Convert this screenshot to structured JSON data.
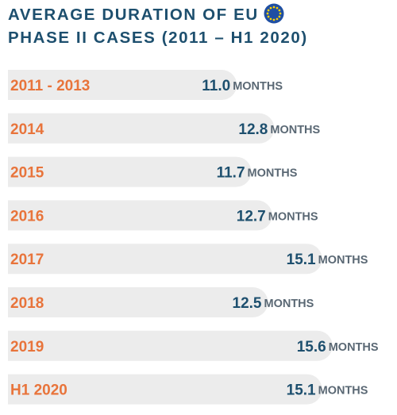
{
  "title_lines": [
    "AVERAGE DURATION OF EU",
    "PHASE II CASES (2011 – H1 2020)"
  ],
  "colors": {
    "title": "#1d4f6e",
    "category": "#e8743b",
    "value": "#1d4f6e",
    "unit": "#5a6874",
    "bar": "#ececec",
    "flag_bg": "#1f4fa3",
    "flag_stars": "#ffd200"
  },
  "icons": {
    "flag": "eu-flag-icon"
  },
  "chart_data": {
    "type": "bar",
    "orientation": "horizontal",
    "title": "AVERAGE DURATION OF EU PHASE II CASES (2011 – H1 2020)",
    "categories": [
      "2011 - 2013",
      "2014",
      "2015",
      "2016",
      "2017",
      "2018",
      "2019",
      "H1 2020"
    ],
    "values": [
      11.0,
      12.8,
      11.7,
      12.7,
      15.1,
      12.5,
      15.6,
      15.1
    ],
    "value_labels": [
      "11.0",
      "12.8",
      "11.7",
      "12.7",
      "15.1",
      "12.5",
      "15.6",
      "15.1"
    ],
    "unit": "MONTHS",
    "grid": false
  }
}
